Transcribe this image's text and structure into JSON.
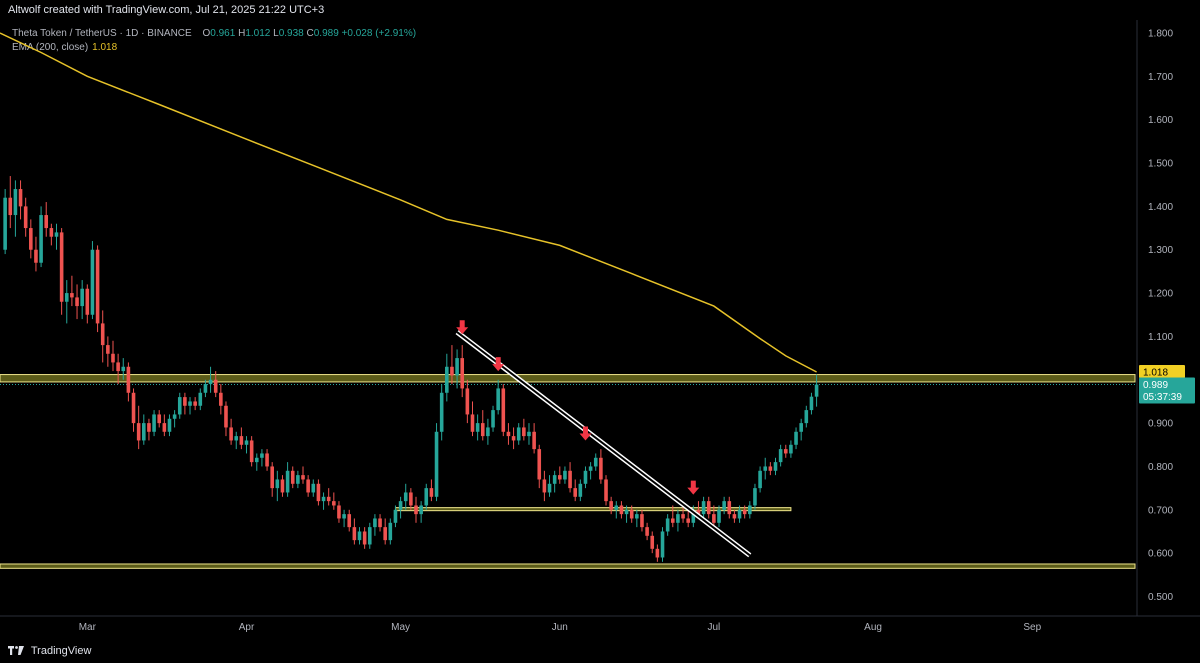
{
  "header": {
    "credit": "Altwolf created with TradingView.com, Jul 21, 2025 21:22 UTC+3"
  },
  "legend": {
    "symbol": "Theta Token / TetherUS · 1D · BINANCE",
    "o_label": "O",
    "o_value": "0.961",
    "h_label": "H",
    "h_value": "1.012",
    "l_label": "L",
    "l_value": "0.938",
    "c_label": "C",
    "c_value": "0.989",
    "change": "+0.028 (+2.91%)",
    "ema_label": "EMA (200, close)",
    "ema_value": "1.018"
  },
  "footer": {
    "brand": "TradingView"
  },
  "colors": {
    "up": "#26a69a",
    "down": "#ef5350",
    "ema": "#e6c229",
    "zone": "#6b6b1c",
    "zone_border": "#f0e68c",
    "arrow": "#f23645",
    "trendline": "#ffffff",
    "price_label_bg": "#26a69a",
    "ema_label_bg": "#f2d024"
  },
  "chart_data": {
    "type": "candlestick",
    "ylim": [
      0.455,
      1.83
    ],
    "y_ticks": [
      "1.800",
      "1.700",
      "1.600",
      "1.500",
      "1.400",
      "1.300",
      "1.200",
      "1.100",
      "1.000",
      "0.900",
      "0.800",
      "0.700",
      "0.600",
      "0.500"
    ],
    "x_labels": [
      {
        "label": "Mar",
        "date": "2025-03-01"
      },
      {
        "label": "Apr",
        "date": "2025-04-01"
      },
      {
        "label": "May",
        "date": "2025-05-01"
      },
      {
        "label": "Jun",
        "date": "2025-06-01"
      },
      {
        "label": "Jul",
        "date": "2025-07-01"
      },
      {
        "label": "Aug",
        "date": "2025-08-01"
      },
      {
        "label": "Sep",
        "date": "2025-09-01"
      }
    ],
    "x_range": [
      "2025-02-12",
      "2025-09-21"
    ],
    "price_label": {
      "value": "0.989",
      "countdown": "05:37:39"
    },
    "ema_label": {
      "value": "1.018"
    },
    "ema_points": [
      [
        "2025-02-12",
        1.8
      ],
      [
        "2025-02-20",
        1.755
      ],
      [
        "2025-03-01",
        1.7
      ],
      [
        "2025-03-15",
        1.635
      ],
      [
        "2025-04-01",
        1.555
      ],
      [
        "2025-04-15",
        1.49
      ],
      [
        "2025-05-01",
        1.415
      ],
      [
        "2025-05-10",
        1.37
      ],
      [
        "2025-05-20",
        1.345
      ],
      [
        "2025-06-01",
        1.31
      ],
      [
        "2025-06-15",
        1.245
      ],
      [
        "2025-07-01",
        1.17
      ],
      [
        "2025-07-10",
        1.095
      ],
      [
        "2025-07-15",
        1.055
      ],
      [
        "2025-07-21",
        1.018
      ]
    ],
    "zones": [
      {
        "from": "2025-02-12",
        "to": "2025-09-21",
        "low": 0.995,
        "high": 1.012
      },
      {
        "from": "2025-04-30",
        "to": "2025-07-16",
        "low": 0.698,
        "high": 0.705
      },
      {
        "from": "2025-02-12",
        "to": "2025-09-21",
        "low": 0.565,
        "high": 0.575
      }
    ],
    "trendline": {
      "from": [
        "2025-05-12",
        1.11
      ],
      "to": [
        "2025-07-08",
        0.595
      ]
    },
    "arrows": [
      {
        "date": "2025-05-13",
        "price": 1.105
      },
      {
        "date": "2025-05-20",
        "price": 1.02
      },
      {
        "date": "2025-06-06",
        "price": 0.86
      },
      {
        "date": "2025-06-27",
        "price": 0.735
      }
    ],
    "candles": [
      [
        "2025-02-13",
        1.3,
        1.44,
        1.29,
        1.42
      ],
      [
        "2025-02-14",
        1.42,
        1.47,
        1.35,
        1.38
      ],
      [
        "2025-02-15",
        1.38,
        1.46,
        1.33,
        1.44
      ],
      [
        "2025-02-16",
        1.44,
        1.46,
        1.37,
        1.4
      ],
      [
        "2025-02-17",
        1.4,
        1.42,
        1.33,
        1.35
      ],
      [
        "2025-02-18",
        1.35,
        1.37,
        1.28,
        1.3
      ],
      [
        "2025-02-19",
        1.3,
        1.33,
        1.25,
        1.27
      ],
      [
        "2025-02-20",
        1.27,
        1.4,
        1.26,
        1.38
      ],
      [
        "2025-02-21",
        1.38,
        1.41,
        1.33,
        1.35
      ],
      [
        "2025-02-22",
        1.35,
        1.36,
        1.31,
        1.33
      ],
      [
        "2025-02-23",
        1.33,
        1.36,
        1.3,
        1.34
      ],
      [
        "2025-02-24",
        1.34,
        1.35,
        1.15,
        1.18
      ],
      [
        "2025-02-25",
        1.18,
        1.23,
        1.13,
        1.2
      ],
      [
        "2025-02-26",
        1.2,
        1.24,
        1.17,
        1.19
      ],
      [
        "2025-02-27",
        1.19,
        1.22,
        1.14,
        1.17
      ],
      [
        "2025-02-28",
        1.17,
        1.23,
        1.14,
        1.21
      ],
      [
        "2025-03-01",
        1.21,
        1.22,
        1.13,
        1.15
      ],
      [
        "2025-03-02",
        1.15,
        1.32,
        1.14,
        1.3
      ],
      [
        "2025-03-03",
        1.3,
        1.31,
        1.11,
        1.13
      ],
      [
        "2025-03-04",
        1.13,
        1.16,
        1.04,
        1.08
      ],
      [
        "2025-03-05",
        1.08,
        1.1,
        1.03,
        1.06
      ],
      [
        "2025-03-06",
        1.06,
        1.09,
        1.02,
        1.04
      ],
      [
        "2025-03-07",
        1.04,
        1.06,
        0.99,
        1.02
      ],
      [
        "2025-03-08",
        1.02,
        1.05,
        1.0,
        1.03
      ],
      [
        "2025-03-09",
        1.03,
        1.04,
        0.95,
        0.97
      ],
      [
        "2025-03-10",
        0.97,
        0.98,
        0.88,
        0.9
      ],
      [
        "2025-03-11",
        0.9,
        0.94,
        0.84,
        0.86
      ],
      [
        "2025-03-12",
        0.86,
        0.92,
        0.85,
        0.9
      ],
      [
        "2025-03-13",
        0.9,
        0.91,
        0.86,
        0.88
      ],
      [
        "2025-03-14",
        0.88,
        0.93,
        0.87,
        0.92
      ],
      [
        "2025-03-15",
        0.92,
        0.93,
        0.89,
        0.9
      ],
      [
        "2025-03-16",
        0.9,
        0.92,
        0.87,
        0.88
      ],
      [
        "2025-03-17",
        0.88,
        0.92,
        0.87,
        0.91
      ],
      [
        "2025-03-18",
        0.91,
        0.93,
        0.89,
        0.92
      ],
      [
        "2025-03-19",
        0.92,
        0.97,
        0.91,
        0.96
      ],
      [
        "2025-03-20",
        0.96,
        0.97,
        0.92,
        0.94
      ],
      [
        "2025-03-21",
        0.94,
        0.96,
        0.92,
        0.95
      ],
      [
        "2025-03-22",
        0.95,
        0.96,
        0.93,
        0.94
      ],
      [
        "2025-03-23",
        0.94,
        0.98,
        0.93,
        0.97
      ],
      [
        "2025-03-24",
        0.97,
        1.0,
        0.96,
        0.99
      ],
      [
        "2025-03-25",
        0.99,
        1.03,
        0.97,
        1.0
      ],
      [
        "2025-03-26",
        1.0,
        1.02,
        0.96,
        0.97
      ],
      [
        "2025-03-27",
        0.97,
        0.99,
        0.92,
        0.94
      ],
      [
        "2025-03-28",
        0.94,
        0.95,
        0.87,
        0.89
      ],
      [
        "2025-03-29",
        0.89,
        0.91,
        0.85,
        0.86
      ],
      [
        "2025-03-30",
        0.86,
        0.88,
        0.84,
        0.87
      ],
      [
        "2025-03-31",
        0.87,
        0.89,
        0.84,
        0.85
      ],
      [
        "2025-04-01",
        0.85,
        0.87,
        0.83,
        0.86
      ],
      [
        "2025-04-02",
        0.86,
        0.87,
        0.8,
        0.81
      ],
      [
        "2025-04-03",
        0.81,
        0.83,
        0.79,
        0.82
      ],
      [
        "2025-04-04",
        0.82,
        0.84,
        0.8,
        0.83
      ],
      [
        "2025-04-05",
        0.83,
        0.84,
        0.79,
        0.8
      ],
      [
        "2025-04-06",
        0.8,
        0.81,
        0.73,
        0.75
      ],
      [
        "2025-04-07",
        0.75,
        0.79,
        0.72,
        0.77
      ],
      [
        "2025-04-08",
        0.77,
        0.78,
        0.73,
        0.74
      ],
      [
        "2025-04-09",
        0.74,
        0.81,
        0.73,
        0.79
      ],
      [
        "2025-04-10",
        0.79,
        0.8,
        0.75,
        0.76
      ],
      [
        "2025-04-11",
        0.76,
        0.79,
        0.75,
        0.78
      ],
      [
        "2025-04-12",
        0.78,
        0.8,
        0.76,
        0.77
      ],
      [
        "2025-04-13",
        0.77,
        0.78,
        0.73,
        0.74
      ],
      [
        "2025-04-14",
        0.74,
        0.77,
        0.73,
        0.76
      ],
      [
        "2025-04-15",
        0.76,
        0.77,
        0.71,
        0.72
      ],
      [
        "2025-04-16",
        0.72,
        0.74,
        0.7,
        0.73
      ],
      [
        "2025-04-17",
        0.73,
        0.75,
        0.71,
        0.72
      ],
      [
        "2025-04-18",
        0.72,
        0.74,
        0.7,
        0.71
      ],
      [
        "2025-04-19",
        0.71,
        0.72,
        0.67,
        0.68
      ],
      [
        "2025-04-20",
        0.68,
        0.7,
        0.66,
        0.69
      ],
      [
        "2025-04-21",
        0.69,
        0.7,
        0.65,
        0.66
      ],
      [
        "2025-04-22",
        0.66,
        0.68,
        0.62,
        0.63
      ],
      [
        "2025-04-23",
        0.63,
        0.66,
        0.62,
        0.65
      ],
      [
        "2025-04-24",
        0.65,
        0.66,
        0.61,
        0.62
      ],
      [
        "2025-04-25",
        0.62,
        0.67,
        0.61,
        0.66
      ],
      [
        "2025-04-26",
        0.66,
        0.69,
        0.64,
        0.68
      ],
      [
        "2025-04-27",
        0.68,
        0.69,
        0.65,
        0.66
      ],
      [
        "2025-04-28",
        0.66,
        0.68,
        0.62,
        0.63
      ],
      [
        "2025-04-29",
        0.63,
        0.68,
        0.62,
        0.67
      ],
      [
        "2025-04-30",
        0.67,
        0.71,
        0.66,
        0.7
      ],
      [
        "2025-05-01",
        0.7,
        0.73,
        0.68,
        0.72
      ],
      [
        "2025-05-02",
        0.72,
        0.76,
        0.7,
        0.74
      ],
      [
        "2025-05-03",
        0.74,
        0.75,
        0.7,
        0.71
      ],
      [
        "2025-05-04",
        0.71,
        0.73,
        0.67,
        0.69
      ],
      [
        "2025-05-05",
        0.69,
        0.72,
        0.67,
        0.71
      ],
      [
        "2025-05-06",
        0.71,
        0.76,
        0.7,
        0.75
      ],
      [
        "2025-05-07",
        0.75,
        0.77,
        0.72,
        0.73
      ],
      [
        "2025-05-08",
        0.73,
        0.9,
        0.72,
        0.88
      ],
      [
        "2025-05-09",
        0.88,
        0.99,
        0.86,
        0.97
      ],
      [
        "2025-05-10",
        0.97,
        1.06,
        0.95,
        1.03
      ],
      [
        "2025-05-11",
        1.03,
        1.08,
        0.99,
        1.01
      ],
      [
        "2025-05-12",
        1.01,
        1.07,
        0.98,
        1.05
      ],
      [
        "2025-05-13",
        1.05,
        1.08,
        0.96,
        0.98
      ],
      [
        "2025-05-14",
        0.98,
        1.0,
        0.9,
        0.92
      ],
      [
        "2025-05-15",
        0.92,
        0.95,
        0.87,
        0.88
      ],
      [
        "2025-05-16",
        0.88,
        0.92,
        0.86,
        0.9
      ],
      [
        "2025-05-17",
        0.9,
        0.93,
        0.86,
        0.87
      ],
      [
        "2025-05-18",
        0.87,
        0.91,
        0.85,
        0.89
      ],
      [
        "2025-05-19",
        0.89,
        0.94,
        0.88,
        0.93
      ],
      [
        "2025-05-20",
        0.93,
        1.0,
        0.92,
        0.98
      ],
      [
        "2025-05-21",
        0.98,
        0.99,
        0.87,
        0.88
      ],
      [
        "2025-05-22",
        0.88,
        0.9,
        0.85,
        0.87
      ],
      [
        "2025-05-23",
        0.87,
        0.89,
        0.84,
        0.86
      ],
      [
        "2025-05-24",
        0.86,
        0.9,
        0.85,
        0.89
      ],
      [
        "2025-05-25",
        0.89,
        0.91,
        0.86,
        0.87
      ],
      [
        "2025-05-26",
        0.87,
        0.9,
        0.85,
        0.88
      ],
      [
        "2025-05-27",
        0.88,
        0.9,
        0.83,
        0.84
      ],
      [
        "2025-05-28",
        0.84,
        0.85,
        0.75,
        0.77
      ],
      [
        "2025-05-29",
        0.77,
        0.79,
        0.72,
        0.74
      ],
      [
        "2025-05-30",
        0.74,
        0.78,
        0.73,
        0.76
      ],
      [
        "2025-05-31",
        0.76,
        0.79,
        0.74,
        0.78
      ],
      [
        "2025-06-01",
        0.78,
        0.8,
        0.76,
        0.77
      ],
      [
        "2025-06-02",
        0.77,
        0.8,
        0.76,
        0.79
      ],
      [
        "2025-06-03",
        0.79,
        0.81,
        0.74,
        0.75
      ],
      [
        "2025-06-04",
        0.75,
        0.77,
        0.72,
        0.73
      ],
      [
        "2025-06-05",
        0.73,
        0.77,
        0.72,
        0.76
      ],
      [
        "2025-06-06",
        0.76,
        0.8,
        0.75,
        0.79
      ],
      [
        "2025-06-07",
        0.79,
        0.81,
        0.77,
        0.8
      ],
      [
        "2025-06-08",
        0.8,
        0.83,
        0.79,
        0.82
      ],
      [
        "2025-06-09",
        0.82,
        0.84,
        0.76,
        0.77
      ],
      [
        "2025-06-10",
        0.77,
        0.78,
        0.71,
        0.72
      ],
      [
        "2025-06-11",
        0.72,
        0.73,
        0.69,
        0.7
      ],
      [
        "2025-06-12",
        0.7,
        0.72,
        0.68,
        0.71
      ],
      [
        "2025-06-13",
        0.71,
        0.72,
        0.68,
        0.69
      ],
      [
        "2025-06-14",
        0.69,
        0.71,
        0.67,
        0.7
      ],
      [
        "2025-06-15",
        0.7,
        0.71,
        0.67,
        0.68
      ],
      [
        "2025-06-16",
        0.68,
        0.7,
        0.66,
        0.69
      ],
      [
        "2025-06-17",
        0.69,
        0.7,
        0.65,
        0.66
      ],
      [
        "2025-06-18",
        0.66,
        0.67,
        0.63,
        0.64
      ],
      [
        "2025-06-19",
        0.64,
        0.65,
        0.6,
        0.61
      ],
      [
        "2025-06-20",
        0.61,
        0.62,
        0.58,
        0.59
      ],
      [
        "2025-06-21",
        0.59,
        0.66,
        0.58,
        0.65
      ],
      [
        "2025-06-22",
        0.65,
        0.69,
        0.64,
        0.68
      ],
      [
        "2025-06-23",
        0.68,
        0.71,
        0.66,
        0.67
      ],
      [
        "2025-06-24",
        0.67,
        0.7,
        0.65,
        0.69
      ],
      [
        "2025-06-25",
        0.69,
        0.71,
        0.67,
        0.68
      ],
      [
        "2025-06-26",
        0.68,
        0.7,
        0.66,
        0.67
      ],
      [
        "2025-06-27",
        0.67,
        0.71,
        0.66,
        0.7
      ],
      [
        "2025-06-28",
        0.7,
        0.72,
        0.68,
        0.69
      ],
      [
        "2025-06-29",
        0.69,
        0.73,
        0.68,
        0.72
      ],
      [
        "2025-06-30",
        0.72,
        0.73,
        0.68,
        0.69
      ],
      [
        "2025-07-01",
        0.69,
        0.71,
        0.66,
        0.67
      ],
      [
        "2025-07-02",
        0.67,
        0.71,
        0.66,
        0.7
      ],
      [
        "2025-07-03",
        0.7,
        0.73,
        0.69,
        0.72
      ],
      [
        "2025-07-04",
        0.72,
        0.73,
        0.68,
        0.69
      ],
      [
        "2025-07-05",
        0.69,
        0.7,
        0.67,
        0.68
      ],
      [
        "2025-07-06",
        0.68,
        0.71,
        0.67,
        0.7
      ],
      [
        "2025-07-07",
        0.7,
        0.71,
        0.68,
        0.69
      ],
      [
        "2025-07-08",
        0.69,
        0.72,
        0.68,
        0.71
      ],
      [
        "2025-07-09",
        0.71,
        0.76,
        0.7,
        0.75
      ],
      [
        "2025-07-10",
        0.75,
        0.8,
        0.74,
        0.79
      ],
      [
        "2025-07-11",
        0.79,
        0.82,
        0.77,
        0.8
      ],
      [
        "2025-07-12",
        0.8,
        0.81,
        0.78,
        0.79
      ],
      [
        "2025-07-13",
        0.79,
        0.82,
        0.78,
        0.81
      ],
      [
        "2025-07-14",
        0.81,
        0.85,
        0.8,
        0.84
      ],
      [
        "2025-07-15",
        0.84,
        0.85,
        0.82,
        0.83
      ],
      [
        "2025-07-16",
        0.83,
        0.86,
        0.82,
        0.85
      ],
      [
        "2025-07-17",
        0.85,
        0.89,
        0.84,
        0.88
      ],
      [
        "2025-07-18",
        0.88,
        0.91,
        0.86,
        0.9
      ],
      [
        "2025-07-19",
        0.9,
        0.94,
        0.89,
        0.93
      ],
      [
        "2025-07-20",
        0.93,
        0.97,
        0.92,
        0.961
      ],
      [
        "2025-07-21",
        0.961,
        1.012,
        0.938,
        0.989
      ]
    ]
  }
}
